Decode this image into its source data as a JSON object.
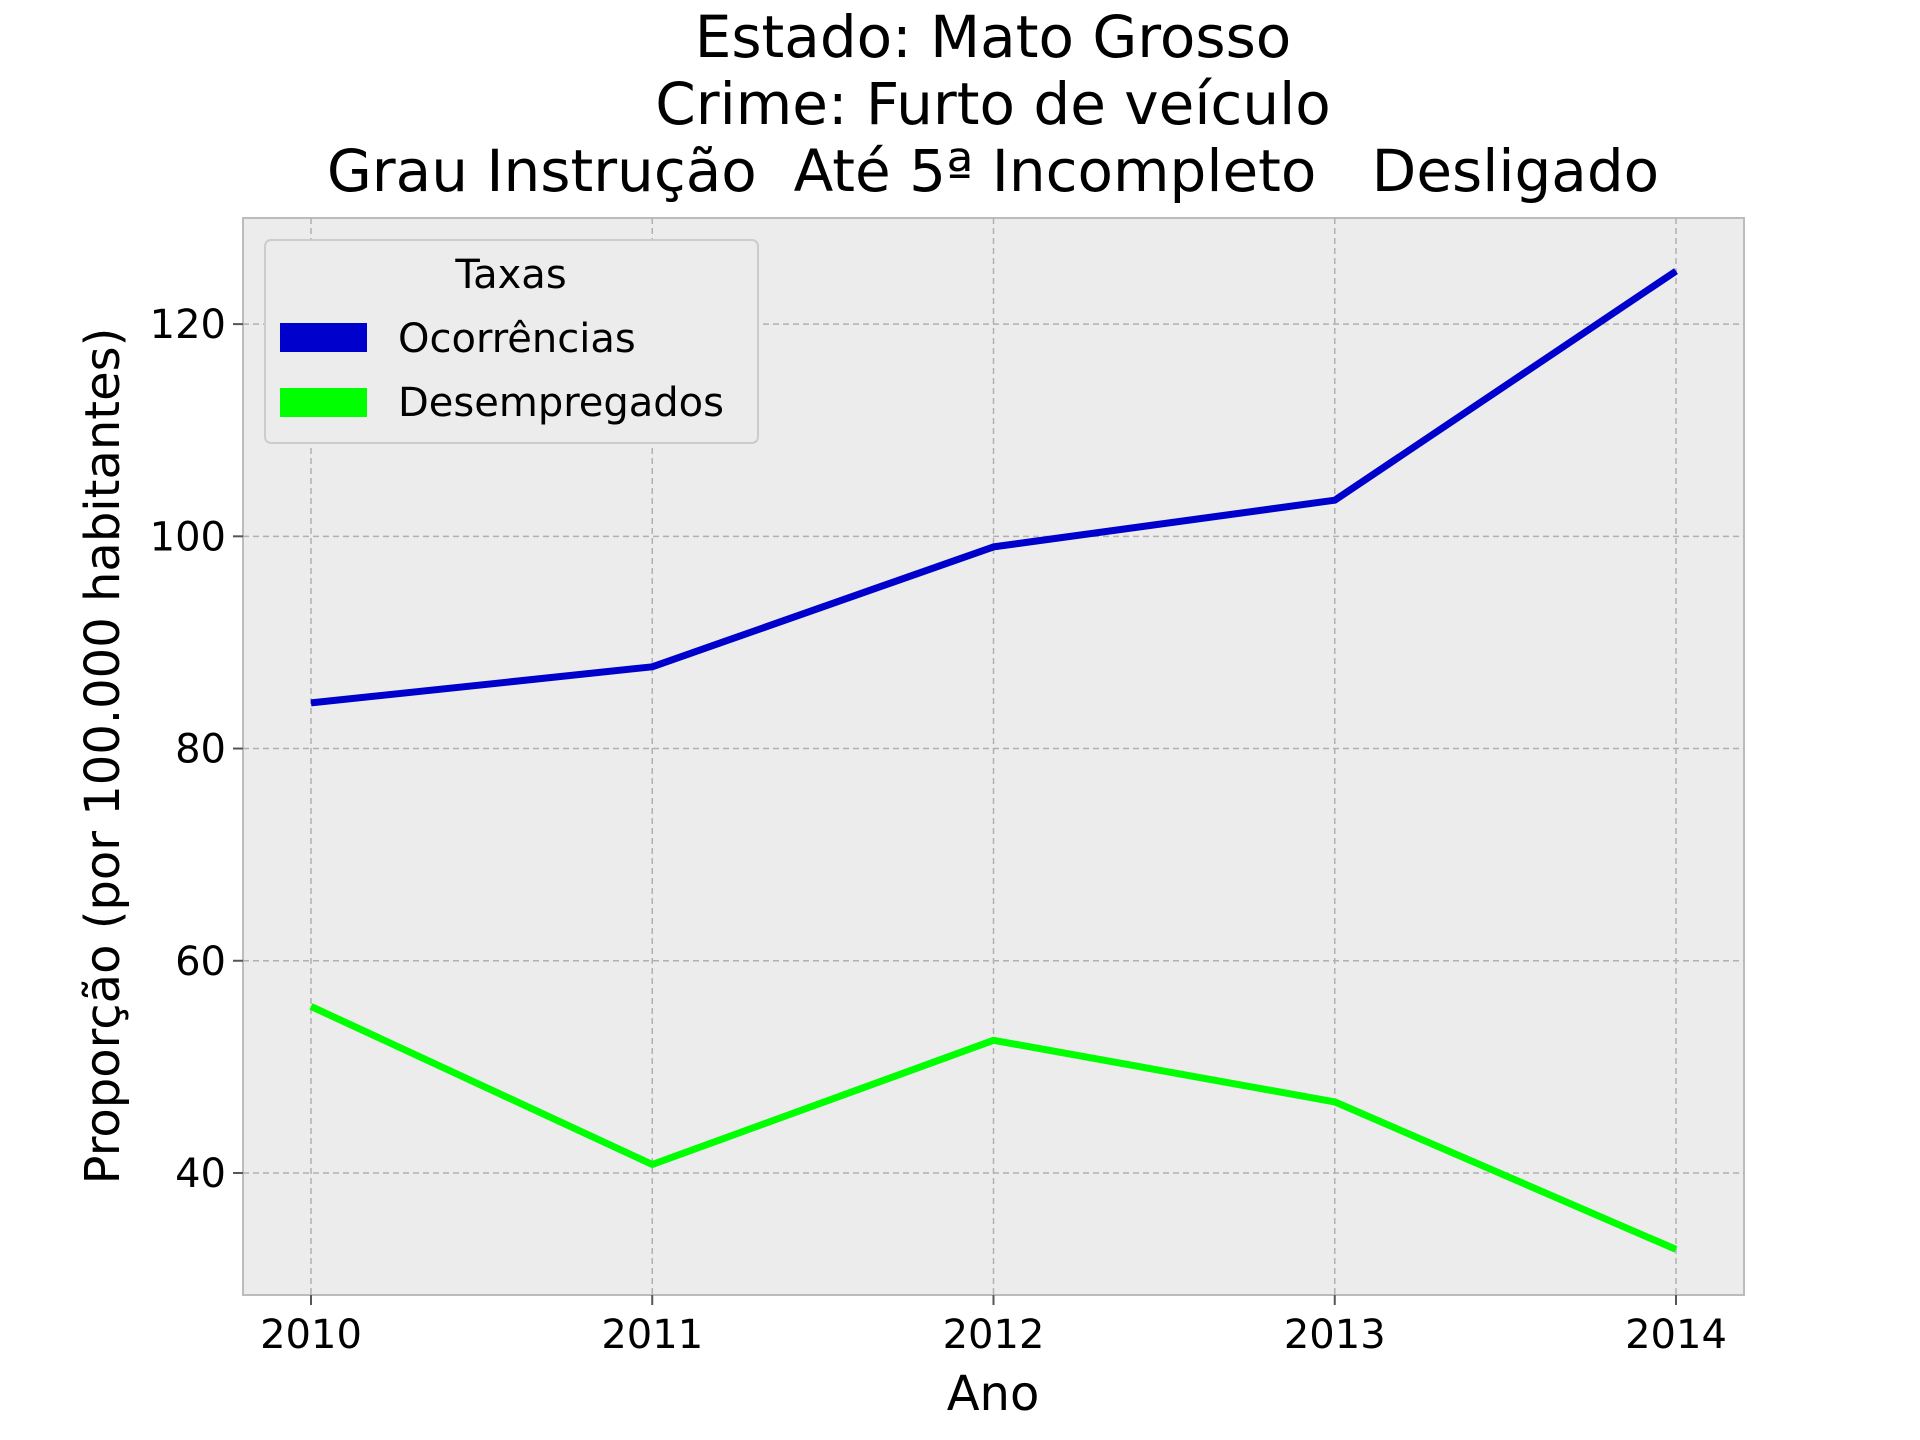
{
  "chart_data": {
    "type": "line",
    "title_lines": [
      "Estado: Mato Grosso",
      "Crime: Furto de veículo",
      "Grau Instrução  Até 5ª Incompleto   Desligado"
    ],
    "xlabel": "Ano",
    "ylabel": "Proporção (por 100.000 habitantes)",
    "x": [
      "2010",
      "2011",
      "2012",
      "2013",
      "2014"
    ],
    "y_ticks": [
      "40",
      "60",
      "80",
      "100",
      "120"
    ],
    "ylim": [
      28.5,
      130
    ],
    "grid": true,
    "legend": {
      "title": "Taxas",
      "placement": "top-left"
    },
    "series": [
      {
        "name": "Ocorrências",
        "color": "#0000cc",
        "values": [
          84.3,
          87.7,
          99.0,
          103.4,
          125.0
        ]
      },
      {
        "name": "Desempregados",
        "color": "#00ff00",
        "values": [
          55.7,
          40.8,
          52.5,
          46.7,
          32.8
        ]
      }
    ]
  }
}
